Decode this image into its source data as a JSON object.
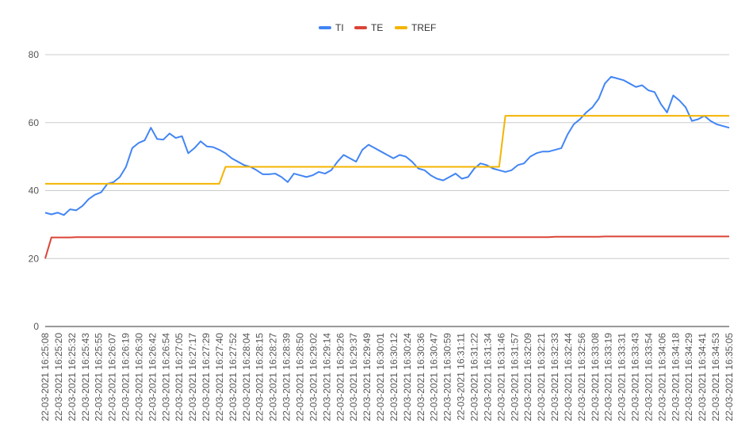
{
  "chart_data": {
    "type": "line",
    "title": "",
    "xlabel": "",
    "ylabel": "",
    "ylim": [
      0,
      80
    ],
    "yticks": [
      0,
      20,
      40,
      60,
      80
    ],
    "grid": "horizontal",
    "legend_position": "top-center",
    "x_tick_labels": [
      "22-03-2021 16:25:08",
      "22-03-2021 16:25:20",
      "22-03-2021 16:25:32",
      "22-03-2021 16:25:43",
      "22-03-2021 16:25:55",
      "22-03-2021 16:26:07",
      "22-03-2021 16:26:19",
      "22-03-2021 16:26:30",
      "22-03-2021 16:26:42",
      "22-03-2021 16:26:54",
      "22-03-2021 16:27:05",
      "22-03-2021 16:27:17",
      "22-03-2021 16:27:29",
      "22-03-2021 16:27:40",
      "22-03-2021 16:27:52",
      "22-03-2021 16:28:04",
      "22-03-2021 16:28:15",
      "22-03-2021 16:28:27",
      "22-03-2021 16:28:39",
      "22-03-2021 16:28:50",
      "22-03-2021 16:29:02",
      "22-03-2021 16:29:14",
      "22-03-2021 16:29:26",
      "22-03-2021 16:29:37",
      "22-03-2021 16:29:49",
      "22-03-2021 16:30:01",
      "22-03-2021 16:30:12",
      "22-03-2021 16:30:24",
      "22-03-2021 16:30:36",
      "22-03-2021 16:30:47",
      "22-03-2021 16:30:59",
      "22-03-2021 16:31:11",
      "22-03-2021 16:31:22",
      "22-03-2021 16:31:34",
      "22-03-2021 16:31:46",
      "22-03-2021 16:31:57",
      "22-03-2021 16:32:09",
      "22-03-2021 16:32:21",
      "22-03-2021 16:32:33",
      "22-03-2021 16:32:44",
      "22-03-2021 16:32:56",
      "22-03-2021 16:33:08",
      "22-03-2021 16:33:19",
      "22-03-2021 16:33:31",
      "22-03-2021 16:33:43",
      "22-03-2021 16:33:54",
      "22-03-2021 16:34:06",
      "22-03-2021 16:34:18",
      "22-03-2021 16:34:29",
      "22-03-2021 16:34:41",
      "22-03-2021 16:34:53",
      "22-03-2021 16:35:05"
    ],
    "series": [
      {
        "name": "TI",
        "color": "#4285F4",
        "values": [
          33.5,
          33.0,
          33.5,
          32.8,
          34.5,
          34.2,
          35.5,
          37.5,
          38.8,
          39.5,
          42.0,
          42.5,
          44.0,
          47.0,
          52.5,
          54.0,
          54.8,
          58.5,
          55.2,
          55.0,
          56.8,
          55.5,
          56.0,
          51.0,
          52.5,
          54.5,
          53.0,
          52.8,
          52.0,
          51.0,
          49.5,
          48.5,
          47.5,
          47.0,
          46.0,
          44.8,
          44.8,
          45.0,
          44.0,
          42.5,
          45.0,
          44.5,
          44.0,
          44.5,
          45.5,
          45.0,
          46.0,
          48.5,
          50.5,
          49.5,
          48.5,
          52.0,
          53.5,
          52.5,
          51.5,
          50.5,
          49.5,
          50.5,
          50.0,
          48.5,
          46.5,
          46.0,
          44.5,
          43.5,
          43.0,
          44.0,
          45.0,
          43.5,
          44.0,
          46.5,
          48.0,
          47.5,
          46.5,
          46.0,
          45.5,
          46.0,
          47.5,
          48.0,
          50.0,
          51.0,
          51.5,
          51.5,
          52.0,
          52.5,
          56.5,
          59.5,
          61.0,
          63.0,
          64.5,
          67.0,
          71.5,
          73.5,
          73.0,
          72.5,
          71.5,
          70.5,
          71.0,
          69.5,
          69.0,
          65.5,
          63.0,
          68.0,
          66.5,
          64.5,
          60.5,
          61.0,
          62.0,
          60.5,
          59.5,
          59.0,
          58.5
        ]
      },
      {
        "name": "TE",
        "color": "#DB4437",
        "values": [
          20.0,
          26.2,
          26.2,
          26.2,
          26.2,
          26.3,
          26.3,
          26.3,
          26.3,
          26.3,
          26.3,
          26.3,
          26.3,
          26.3,
          26.3,
          26.3,
          26.3,
          26.3,
          26.3,
          26.3,
          26.3,
          26.3,
          26.3,
          26.3,
          26.3,
          26.3,
          26.3,
          26.3,
          26.3,
          26.3,
          26.3,
          26.3,
          26.3,
          26.3,
          26.3,
          26.3,
          26.3,
          26.3,
          26.3,
          26.3,
          26.3,
          26.3,
          26.3,
          26.3,
          26.3,
          26.3,
          26.3,
          26.3,
          26.3,
          26.3,
          26.3,
          26.3,
          26.3,
          26.3,
          26.3,
          26.3,
          26.3,
          26.3,
          26.3,
          26.3,
          26.3,
          26.3,
          26.3,
          26.3,
          26.3,
          26.3,
          26.3,
          26.3,
          26.3,
          26.3,
          26.3,
          26.3,
          26.3,
          26.3,
          26.3,
          26.3,
          26.3,
          26.3,
          26.3,
          26.3,
          26.3,
          26.3,
          26.4,
          26.4,
          26.4,
          26.4,
          26.4,
          26.4,
          26.4,
          26.4,
          26.5,
          26.5,
          26.5,
          26.5,
          26.5,
          26.5,
          26.5,
          26.5,
          26.5,
          26.5,
          26.5,
          26.5,
          26.5,
          26.5,
          26.5,
          26.5,
          26.5,
          26.5,
          26.5,
          26.5,
          26.5
        ]
      },
      {
        "name": "TREF",
        "color": "#F4B400",
        "values": [
          42,
          42,
          42,
          42,
          42,
          42,
          42,
          42,
          42,
          42,
          42,
          42,
          42,
          42,
          42,
          42,
          42,
          42,
          42,
          42,
          42,
          42,
          42,
          42,
          42,
          42,
          42,
          42,
          42,
          47,
          47,
          47,
          47,
          47,
          47,
          47,
          47,
          47,
          47,
          47,
          47,
          47,
          47,
          47,
          47,
          47,
          47,
          47,
          47,
          47,
          47,
          47,
          47,
          47,
          47,
          47,
          47,
          47,
          47,
          47,
          47,
          47,
          47,
          47,
          47,
          47,
          47,
          47,
          47,
          47,
          47,
          47,
          47,
          47,
          62,
          62,
          62,
          62,
          62,
          62,
          62,
          62,
          62,
          62,
          62,
          62,
          62,
          62,
          62,
          62,
          62,
          62,
          62,
          62,
          62,
          62,
          62,
          62,
          62,
          62,
          62,
          62,
          62,
          62,
          62,
          62,
          62,
          62,
          62,
          62,
          62
        ]
      }
    ]
  }
}
